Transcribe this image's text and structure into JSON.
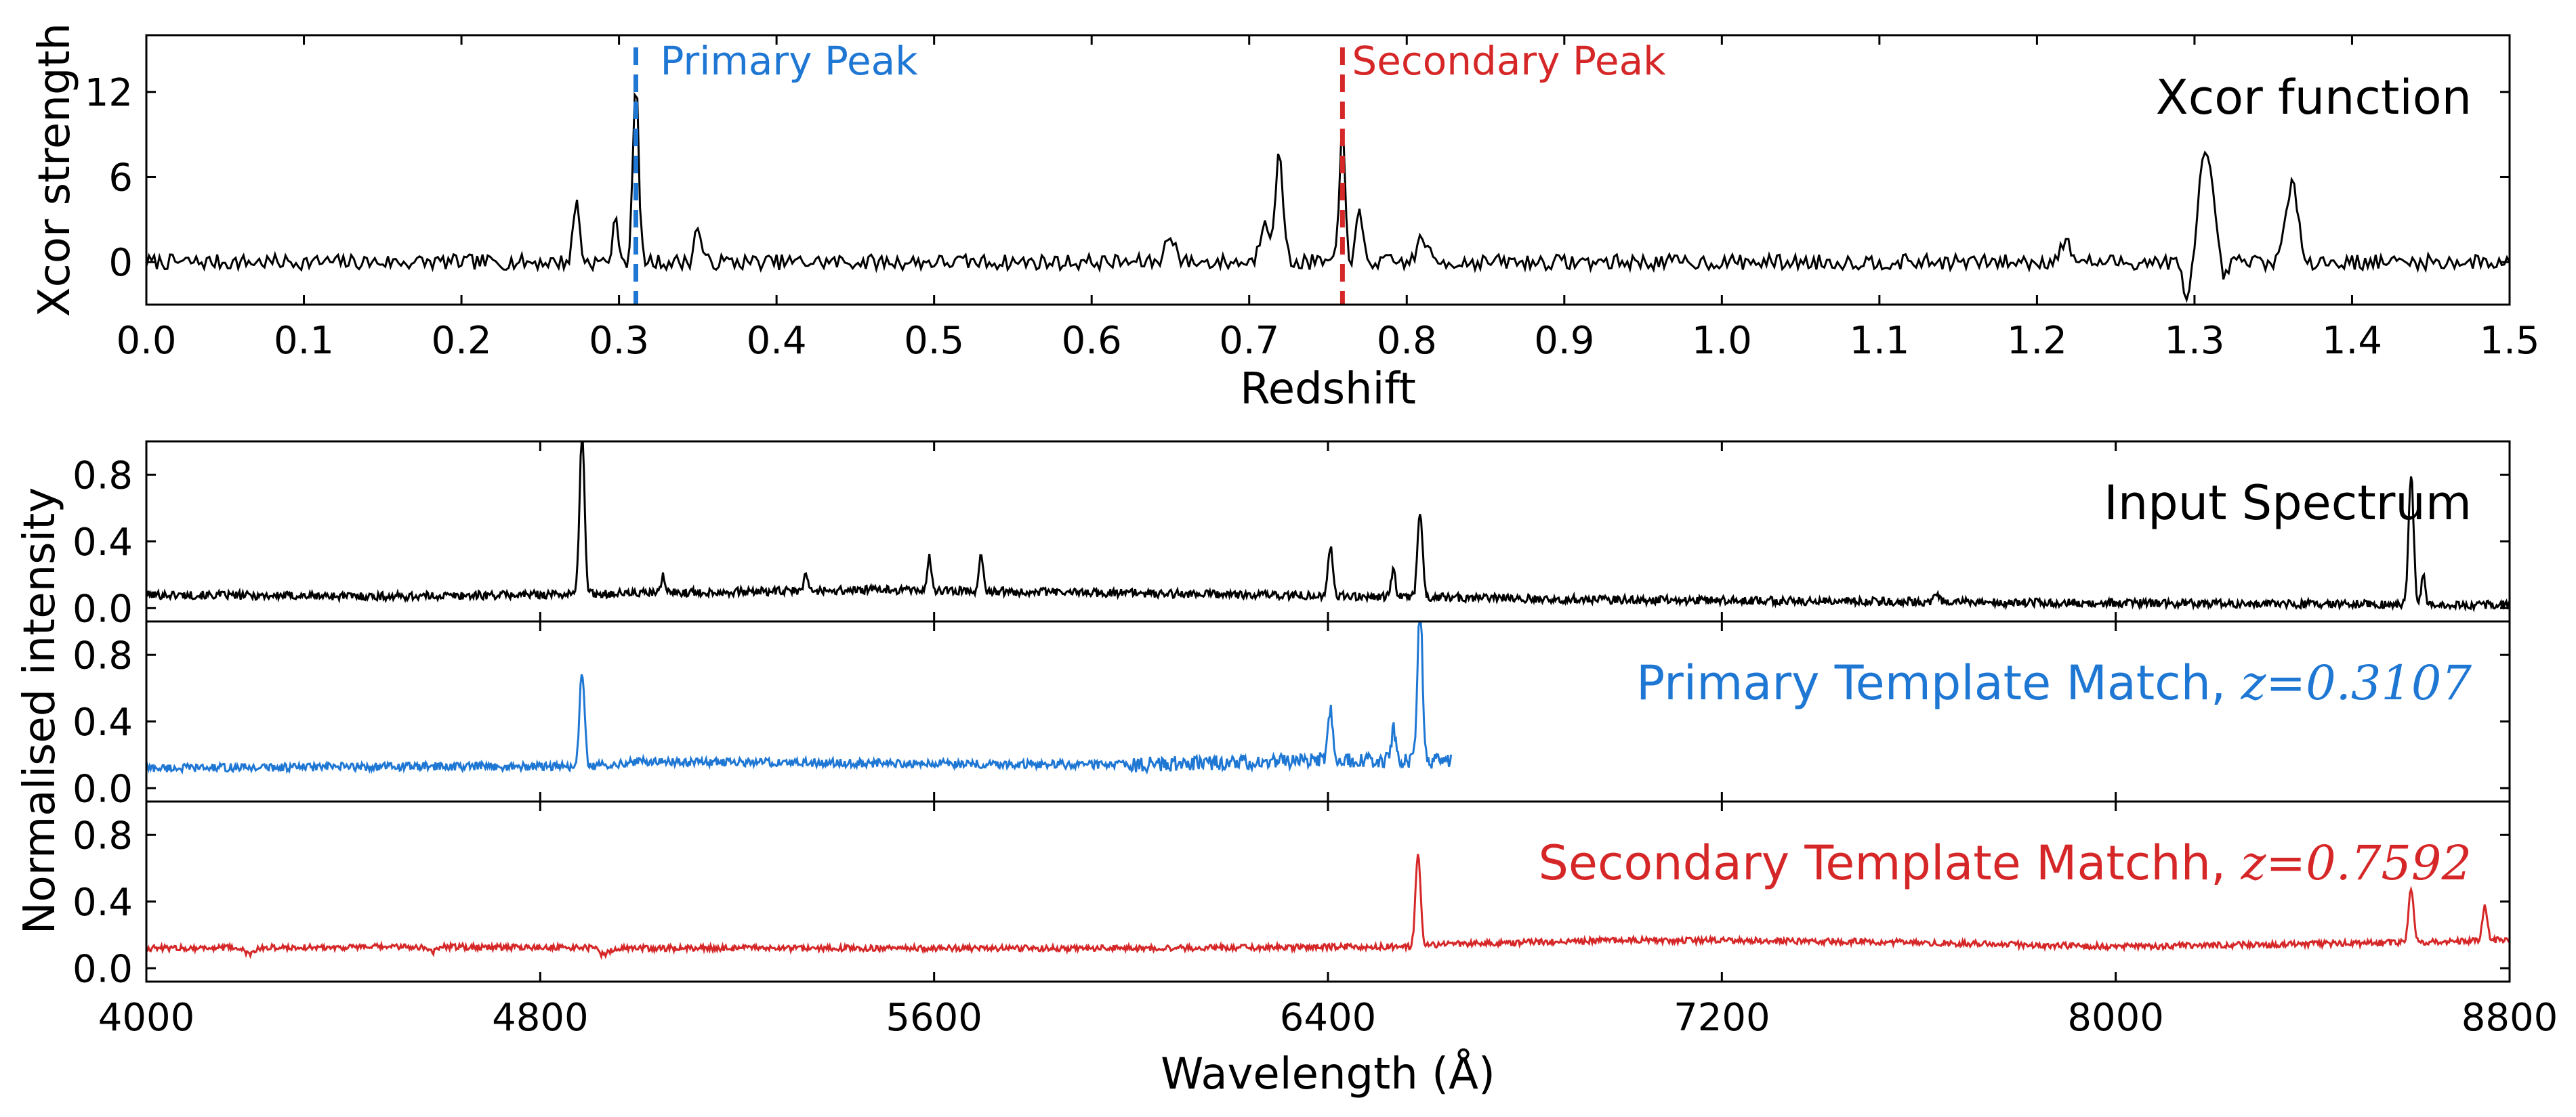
{
  "colors": {
    "black": "#000000",
    "blue": "#1f77d4",
    "red": "#d62728"
  },
  "chart_data": [
    {
      "type": "line",
      "title": "",
      "panel_label": "Xcor function",
      "xlabel": "Redshift",
      "ylabel": "Xcor strength",
      "xlim": [
        0.0,
        1.5
      ],
      "ylim": [
        -3,
        16
      ],
      "xticks": [
        0.0,
        0.1,
        0.2,
        0.3,
        0.4,
        0.5,
        0.6,
        0.7,
        0.8,
        0.9,
        1.0,
        1.1,
        1.2,
        1.3,
        1.4,
        1.5
      ],
      "xtick_labels": [
        "0.0",
        "0.1",
        "0.2",
        "0.3",
        "0.4",
        "0.5",
        "0.6",
        "0.7",
        "0.8",
        "0.9",
        "1.0",
        "1.1",
        "1.2",
        "1.3",
        "1.4",
        "1.5"
      ],
      "yticks": [
        0,
        6,
        12
      ],
      "ytick_labels": [
        "0",
        "6",
        "12"
      ],
      "series": [
        {
          "color": "#000000",
          "noise": 0.55,
          "baseline": 0.0,
          "peaks": [
            [
              0.273,
              4.3,
              0.002
            ],
            [
              0.298,
              2.8,
              0.002
            ],
            [
              0.3107,
              12.8,
              0.0018
            ],
            [
              0.35,
              2.6,
              0.002
            ],
            [
              0.65,
              2.0,
              0.003
            ],
            [
              0.71,
              3.0,
              0.003
            ],
            [
              0.719,
              7.4,
              0.0025
            ],
            [
              0.7592,
              9.2,
              0.0018
            ],
            [
              0.77,
              3.5,
              0.002
            ],
            [
              0.81,
              1.8,
              0.003
            ],
            [
              1.218,
              1.3,
              0.004
            ],
            [
              1.307,
              7.5,
              0.005
            ],
            [
              1.362,
              5.3,
              0.004
            ]
          ],
          "dips": [
            [
              1.296,
              -3.2,
              0.003
            ],
            [
              1.318,
              -1.4,
              0.003
            ]
          ]
        }
      ],
      "annotations": [
        {
          "text": "Primary Peak",
          "x": 0.3107,
          "color": "#1f77d4"
        },
        {
          "text": "Secondary Peak",
          "x": 0.7592,
          "color": "#d62728"
        }
      ]
    },
    {
      "type": "line",
      "panel_label": "Input Spectrum",
      "xlabel": "",
      "ylabel": "Normalised intensity",
      "xlim": [
        4000,
        8800
      ],
      "ylim": [
        -0.08,
        1.0
      ],
      "yticks": [
        0.0,
        0.4,
        0.8
      ],
      "ytick_labels": [
        "0.0",
        "0.4",
        "0.8"
      ],
      "series": [
        {
          "color": "#000000",
          "x_range": [
            4000,
            8800
          ],
          "noise": 0.025,
          "baseline_points": [
            [
              4000,
              0.08
            ],
            [
              4500,
              0.07
            ],
            [
              5000,
              0.09
            ],
            [
              5500,
              0.11
            ],
            [
              6000,
              0.09
            ],
            [
              6500,
              0.07
            ],
            [
              7000,
              0.05
            ],
            [
              7500,
              0.04
            ],
            [
              8000,
              0.03
            ],
            [
              8800,
              0.02
            ]
          ],
          "peaks": [
            [
              4885,
              0.98,
              5
            ],
            [
              5050,
              0.1,
              4
            ],
            [
              5340,
              0.1,
              4
            ],
            [
              5590,
              0.2,
              4
            ],
            [
              5695,
              0.24,
              4
            ],
            [
              6405,
              0.3,
              5
            ],
            [
              6533,
              0.18,
              4
            ],
            [
              6587,
              0.52,
              5
            ],
            [
              7635,
              0.04,
              6
            ],
            [
              8600,
              0.78,
              5
            ],
            [
              8625,
              0.18,
              4
            ]
          ]
        }
      ]
    },
    {
      "type": "line",
      "panel_label": "Primary Template Match, ",
      "panel_label_math": "z=0.3107",
      "xlim": [
        4000,
        8800
      ],
      "ylim": [
        -0.08,
        1.0
      ],
      "yticks": [
        0.0,
        0.4,
        0.8
      ],
      "ytick_labels": [
        "0.0",
        "0.4",
        "0.8"
      ],
      "series": [
        {
          "color": "#1f77d4",
          "x_range": [
            4000,
            6650
          ],
          "noise": 0.025,
          "baseline_points": [
            [
              4000,
              0.12
            ],
            [
              4500,
              0.13
            ],
            [
              4900,
              0.13
            ],
            [
              5000,
              0.16
            ],
            [
              5500,
              0.15
            ],
            [
              6000,
              0.14
            ],
            [
              6400,
              0.17
            ],
            [
              6650,
              0.16
            ]
          ],
          "peaks": [
            [
              4885,
              0.57,
              5
            ],
            [
              6405,
              0.3,
              5
            ],
            [
              6533,
              0.2,
              4
            ],
            [
              6587,
              0.93,
              5
            ]
          ]
        }
      ]
    },
    {
      "type": "line",
      "panel_label": "Secondary Template Matchh, ",
      "panel_label_math": "z=0.7592",
      "xlim": [
        4000,
        8800
      ],
      "ylim": [
        -0.08,
        1.0
      ],
      "xticks": [
        4000,
        4800,
        5600,
        6400,
        7200,
        8000,
        8800
      ],
      "xtick_labels": [
        "4000",
        "4800",
        "5600",
        "6400",
        "7200",
        "8000",
        "8800"
      ],
      "xlabel": "Wavelength (Å)",
      "yticks": [
        0.0,
        0.4,
        0.8
      ],
      "ytick_labels": [
        "0.0",
        "0.4",
        "0.8"
      ],
      "series": [
        {
          "color": "#d62728",
          "x_range": [
            4000,
            8800
          ],
          "noise": 0.018,
          "baseline_points": [
            [
              4000,
              0.12
            ],
            [
              4600,
              0.13
            ],
            [
              5000,
              0.12
            ],
            [
              6000,
              0.12
            ],
            [
              6560,
              0.13
            ],
            [
              6600,
              0.14
            ],
            [
              7000,
              0.17
            ],
            [
              7500,
              0.16
            ],
            [
              8000,
              0.13
            ],
            [
              8500,
              0.15
            ],
            [
              8800,
              0.17
            ]
          ],
          "peaks": [
            [
              4210,
              -0.04,
              10
            ],
            [
              4580,
              -0.03,
              10
            ],
            [
              4930,
              -0.04,
              10
            ],
            [
              6583,
              0.56,
              5
            ],
            [
              8600,
              0.32,
              5
            ],
            [
              8750,
              0.2,
              5
            ]
          ]
        }
      ]
    }
  ]
}
